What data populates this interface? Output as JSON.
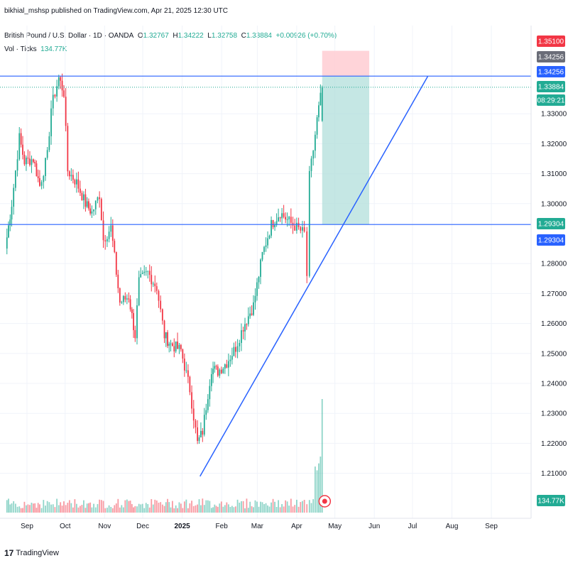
{
  "publish_text": "bikhial_mshsp published on TradingView.com, Apr 21, 2025 12:30 UTC",
  "symbol": {
    "name": "British Pound / U.S. Dollar · 1D · OANDA",
    "open_label": "O",
    "open": "1.32767",
    "high_label": "H",
    "high": "1.34222",
    "low_label": "L",
    "low": "1.32758",
    "close_label": "C",
    "close": "1.33884",
    "change": "+0.00926 (+0.70%)"
  },
  "volume": {
    "label": "Vol · Ticks",
    "value": "134.77K"
  },
  "footer": {
    "logo": "17",
    "brand": "TradingView"
  },
  "colors": {
    "up": "#22ab94",
    "down": "#f23645",
    "line": "#2962ff",
    "target_zone": "#b2dfdb",
    "stop_zone": "#ffcdd2"
  },
  "chart_data": {
    "type": "candlestick",
    "symbol": "GBPUSD",
    "timeframe": "1D",
    "ylim": [
      1.2,
      1.355
    ],
    "y_ticks": [
      "1.33000",
      "1.32000",
      "1.31000",
      "1.30000",
      "1.28000",
      "1.27000",
      "1.26000",
      "1.25000",
      "1.24000",
      "1.23000",
      "1.22000",
      "1.21000"
    ],
    "x_ticks": [
      "Sep",
      "Oct",
      "Nov",
      "Dec",
      "2025",
      "Feb",
      "Mar",
      "Apr",
      "May",
      "Jun",
      "Jul",
      "Aug",
      "Sep"
    ],
    "price_labels": [
      {
        "text": "1.35100",
        "kind": "stop",
        "value": 1.351
      },
      {
        "text": "1.34256",
        "kind": "gray",
        "value": 1.34256
      },
      {
        "text": "1.34256",
        "kind": "line",
        "value": 1.34256
      },
      {
        "text": "1.33884",
        "kind": "last",
        "value": 1.33884
      },
      {
        "text": "08:29:21",
        "kind": "countdown"
      },
      {
        "text": "1.29304",
        "kind": "target",
        "value": 1.29304
      },
      {
        "text": "1.29304",
        "kind": "line",
        "value": 1.29304
      }
    ],
    "volume_label": "134.77K",
    "close_path": [
      [
        "2024-08-15",
        1.285
      ],
      [
        "2024-08-20",
        1.3
      ],
      [
        "2024-08-26",
        1.322
      ],
      [
        "2024-08-30",
        1.314
      ],
      [
        "2024-09-06",
        1.315
      ],
      [
        "2024-09-11",
        1.306
      ],
      [
        "2024-09-17",
        1.316
      ],
      [
        "2024-09-20",
        1.332
      ],
      [
        "2024-09-26",
        1.342
      ],
      [
        "2024-09-30",
        1.337
      ],
      [
        "2024-10-03",
        1.311
      ],
      [
        "2024-10-10",
        1.307
      ],
      [
        "2024-10-17",
        1.3
      ],
      [
        "2024-10-22",
        1.297
      ],
      [
        "2024-10-28",
        1.303
      ],
      [
        "2024-10-31",
        1.288
      ],
      [
        "2024-11-06",
        1.292
      ],
      [
        "2024-11-13",
        1.267
      ],
      [
        "2024-11-20",
        1.269
      ],
      [
        "2024-11-25",
        1.256
      ],
      [
        "2024-11-28",
        1.274
      ],
      [
        "2024-12-05",
        1.277
      ],
      [
        "2024-12-12",
        1.272
      ],
      [
        "2024-12-18",
        1.256
      ],
      [
        "2024-12-23",
        1.253
      ],
      [
        "2024-12-31",
        1.251
      ],
      [
        "2025-01-07",
        1.238
      ],
      [
        "2025-01-13",
        1.22
      ],
      [
        "2025-01-17",
        1.224
      ],
      [
        "2025-01-24",
        1.245
      ],
      [
        "2025-01-29",
        1.244
      ],
      [
        "2025-02-05",
        1.247
      ],
      [
        "2025-02-12",
        1.252
      ],
      [
        "2025-02-18",
        1.259
      ],
      [
        "2025-02-26",
        1.266
      ],
      [
        "2025-03-05",
        1.283
      ],
      [
        "2025-03-12",
        1.293
      ],
      [
        "2025-03-19",
        1.297
      ],
      [
        "2025-03-26",
        1.294
      ],
      [
        "2025-04-01",
        1.292
      ],
      [
        "2025-04-07",
        1.29
      ],
      [
        "2025-04-09",
        1.276
      ],
      [
        "2025-04-11",
        1.309
      ],
      [
        "2025-04-14",
        1.318
      ],
      [
        "2025-04-17",
        1.328
      ],
      [
        "2025-04-21",
        1.339
      ]
    ],
    "horizontal_lines": [
      1.34256,
      1.29304
    ],
    "trendline": [
      [
        "2025-01-15",
        1.209
      ],
      [
        "2025-07-13",
        1.3425
      ]
    ],
    "long_position": {
      "start": "2025-04-21",
      "end": "2025-05-28",
      "entry": 1.34256,
      "stop": 1.351,
      "target": 1.29304
    }
  }
}
